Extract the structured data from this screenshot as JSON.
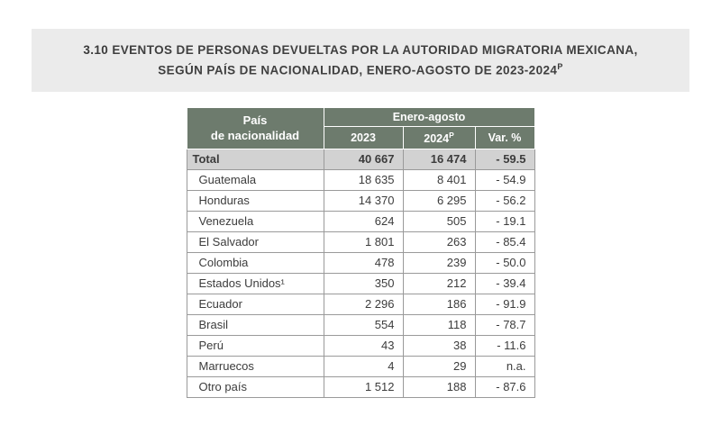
{
  "colors": {
    "header_green": "#6d7b6d",
    "total_gray": "#d2d2d2",
    "title_gray": "#ebebeb",
    "border_gray": "#9a9a9a",
    "text_dark": "#3c3c3c"
  },
  "header": {
    "number": "3.10",
    "title": " EVENTOS DE PERSONAS DEVUELTAS POR LA AUTORIDAD MIGRATORIA MEXICANA, SEGÚN PAÍS DE NACIONALIDAD, ENERO-AGOSTO DE 2023-2024",
    "superscript": "P"
  },
  "table": {
    "header": {
      "country_line1": "País",
      "country_line2": "de nacionalidad",
      "group": "Enero-agosto",
      "y2023": "2023",
      "y2024": "2024",
      "y2024_sup": "P",
      "var": "Var. %"
    },
    "total_row": {
      "label": "Total",
      "v2023": "40 667",
      "v2024": "16 474",
      "var_pct": "- 59.5"
    },
    "rows": [
      {
        "label": "Guatemala",
        "v2023": "18 635",
        "v2024": "8 401",
        "var_pct": "- 54.9"
      },
      {
        "label": "Honduras",
        "v2023": "14 370",
        "v2024": "6 295",
        "var_pct": "- 56.2"
      },
      {
        "label": "Venezuela",
        "v2023": "624",
        "v2024": "505",
        "var_pct": "- 19.1"
      },
      {
        "label": "El Salvador",
        "v2023": "1 801",
        "v2024": "263",
        "var_pct": "- 85.4"
      },
      {
        "label": "Colombia",
        "v2023": "478",
        "v2024": "239",
        "var_pct": "- 50.0"
      },
      {
        "label": "Estados Unidos¹",
        "v2023": "350",
        "v2024": "212",
        "var_pct": "- 39.4"
      },
      {
        "label": "Ecuador",
        "v2023": "2 296",
        "v2024": "186",
        "var_pct": "- 91.9"
      },
      {
        "label": "Brasil",
        "v2023": "554",
        "v2024": "118",
        "var_pct": "- 78.7"
      },
      {
        "label": "Perú",
        "v2023": "43",
        "v2024": "38",
        "var_pct": "- 11.6"
      },
      {
        "label": "Marruecos",
        "v2023": "4",
        "v2024": "29",
        "var_pct": "n.a."
      },
      {
        "label": "Otro país",
        "v2023": "1 512",
        "v2024": "188",
        "var_pct": "- 87.6"
      }
    ]
  }
}
